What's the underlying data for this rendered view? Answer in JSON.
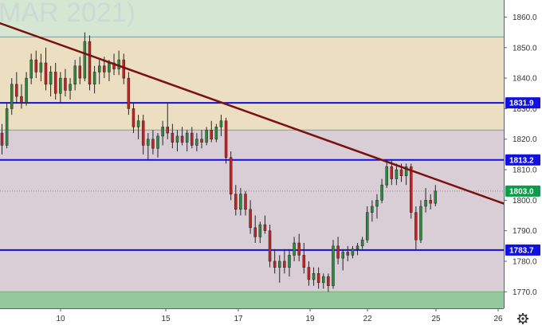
{
  "watermark": "MAR 2021)",
  "chart_data": {
    "type": "candlestick",
    "ylim": [
      1764.6,
      1865.6
    ],
    "y_ticks": [
      1770,
      1780,
      1790,
      1800,
      1810,
      1820,
      1830,
      1840,
      1850,
      1860
    ],
    "y_tick_labels": [
      "1770.0",
      "1780.0",
      "1790.0",
      "1800.0",
      "1810.0",
      "1820.0",
      "1830.0",
      "1840.0",
      "1850.0",
      "1860.0"
    ],
    "x_ticks": [
      {
        "index": 0,
        "label": "10"
      },
      {
        "index": 1,
        "label": "15"
      },
      {
        "index": 2,
        "label": "17"
      },
      {
        "index": 3,
        "label": "19"
      },
      {
        "index": 4,
        "label": "22"
      },
      {
        "index": 5,
        "label": "25"
      },
      {
        "index": 6,
        "label": "26"
      }
    ],
    "zones": [
      {
        "from": 1770.0,
        "to": 1764.6,
        "color": "#93c99d"
      },
      {
        "from": 1823.0,
        "to": 1770.0,
        "color": "#d9cdd6"
      },
      {
        "from": 1853.5,
        "to": 1823.0,
        "color": "#ecdec0"
      },
      {
        "from": 1865.6,
        "to": 1853.5,
        "color": "#d5e6d3"
      }
    ],
    "levels": [
      {
        "value": 1831.9,
        "label": "1831.9",
        "color": "#1010e0"
      },
      {
        "value": 1813.2,
        "label": "1813.2",
        "color": "#1010e0"
      },
      {
        "value": 1783.7,
        "label": "1783.7",
        "color": "#1010e0"
      }
    ],
    "current_price": {
      "value": 1803.0,
      "label": "1803.0",
      "color": "#0a9d4a"
    },
    "trendline": {
      "from": 1858.0,
      "to": 1798.9,
      "color": "#7a1212"
    },
    "candles": [
      [
        1822.0,
        1825.0,
        1815.0,
        1818.0
      ],
      [
        1818.0,
        1832.0,
        1817.0,
        1830.0
      ],
      [
        1830.0,
        1840.0,
        1828.0,
        1838.0
      ],
      [
        1838.0,
        1842.0,
        1832.0,
        1834.0
      ],
      [
        1834.0,
        1838.0,
        1830.0,
        1832.0
      ],
      [
        1832.0,
        1842.0,
        1831.0,
        1840.0
      ],
      [
        1840.0,
        1848.0,
        1838.0,
        1846.0
      ],
      [
        1846.0,
        1849.0,
        1840.0,
        1842.0
      ],
      [
        1842.0,
        1848.0,
        1839.0,
        1845.0
      ],
      [
        1845.0,
        1850.0,
        1836.0,
        1838.0
      ],
      [
        1838.0,
        1844.0,
        1834.0,
        1842.0
      ],
      [
        1842.0,
        1845.0,
        1833.0,
        1835.0
      ],
      [
        1835.0,
        1842.0,
        1832.0,
        1840.0
      ],
      [
        1840.0,
        1843.0,
        1834.0,
        1836.0
      ],
      [
        1836.0,
        1840.0,
        1833.0,
        1838.0
      ],
      [
        1838.0,
        1846.0,
        1836.0,
        1844.0
      ],
      [
        1844.0,
        1847.0,
        1838.0,
        1840.0
      ],
      [
        1840.0,
        1855.0,
        1839.0,
        1852.0
      ],
      [
        1852.0,
        1854.0,
        1836.0,
        1838.0
      ],
      [
        1838.0,
        1844.0,
        1835.0,
        1842.0
      ],
      [
        1842.0,
        1846.0,
        1838.0,
        1844.0
      ],
      [
        1844.0,
        1847.0,
        1840.0,
        1842.0
      ],
      [
        1842.0,
        1846.0,
        1839.0,
        1845.0
      ],
      [
        1845.0,
        1848.0,
        1841.0,
        1843.0
      ],
      [
        1843.0,
        1849.0,
        1841.0,
        1846.0
      ],
      [
        1846.0,
        1848.0,
        1838.0,
        1840.0
      ],
      [
        1840.0,
        1842.0,
        1828.0,
        1830.0
      ],
      [
        1830.0,
        1832.0,
        1822.0,
        1824.0
      ],
      [
        1824.0,
        1828.0,
        1820.0,
        1826.0
      ],
      [
        1826.0,
        1828.0,
        1815.0,
        1818.0
      ],
      [
        1818.0,
        1822.0,
        1813.0,
        1820.0
      ],
      [
        1820.0,
        1823.0,
        1815.0,
        1817.0
      ],
      [
        1817.0,
        1822.0,
        1814.0,
        1821.0
      ],
      [
        1821.0,
        1826.0,
        1818.0,
        1824.0
      ],
      [
        1824.0,
        1832.0,
        1820.0,
        1822.0
      ],
      [
        1822.0,
        1825.0,
        1817.0,
        1819.0
      ],
      [
        1819.0,
        1823.0,
        1816.0,
        1821.0
      ],
      [
        1821.0,
        1824.0,
        1818.0,
        1819.0
      ],
      [
        1819.0,
        1823.0,
        1816.0,
        1822.0
      ],
      [
        1822.0,
        1824.0,
        1817.0,
        1818.0
      ],
      [
        1818.0,
        1822.0,
        1816.0,
        1820.0
      ],
      [
        1820.0,
        1823.0,
        1817.0,
        1819.0
      ],
      [
        1819.0,
        1824.0,
        1818.0,
        1823.0
      ],
      [
        1823.0,
        1826.0,
        1819.0,
        1820.0
      ],
      [
        1820.0,
        1825.0,
        1819.0,
        1824.0
      ],
      [
        1824.0,
        1828.0,
        1821.0,
        1826.0
      ],
      [
        1826.0,
        1827.0,
        1812.0,
        1814.0
      ],
      [
        1814.0,
        1816.0,
        1800.0,
        1802.0
      ],
      [
        1802.0,
        1805.0,
        1795.0,
        1797.0
      ],
      [
        1797.0,
        1804.0,
        1795.0,
        1802.0
      ],
      [
        1802.0,
        1803.0,
        1795.0,
        1797.0
      ],
      [
        1797.0,
        1800.0,
        1789.0,
        1791.0
      ],
      [
        1791.0,
        1795.0,
        1786.0,
        1788.0
      ],
      [
        1788.0,
        1793.0,
        1786.0,
        1792.0
      ],
      [
        1792.0,
        1795.0,
        1789.0,
        1790.0
      ],
      [
        1790.0,
        1792.0,
        1778.0,
        1780.0
      ],
      [
        1780.0,
        1784.0,
        1776.0,
        1778.0
      ],
      [
        1778.0,
        1782.0,
        1773.0,
        1780.0
      ],
      [
        1780.0,
        1784.0,
        1776.0,
        1778.0
      ],
      [
        1778.0,
        1784.0,
        1775.0,
        1782.0
      ],
      [
        1782.0,
        1788.0,
        1780.0,
        1786.0
      ],
      [
        1786.0,
        1789.0,
        1780.0,
        1782.0
      ],
      [
        1782.0,
        1786.0,
        1776.0,
        1778.0
      ],
      [
        1778.0,
        1780.0,
        1772.0,
        1774.0
      ],
      [
        1774.0,
        1778.0,
        1772.0,
        1776.0
      ],
      [
        1776.0,
        1778.0,
        1771.0,
        1773.0
      ],
      [
        1773.0,
        1776.0,
        1771.0,
        1775.0
      ],
      [
        1775.0,
        1776.0,
        1770.0,
        1772.0
      ],
      [
        1772.0,
        1787.0,
        1771.0,
        1785.0
      ],
      [
        1785.0,
        1788.0,
        1779.0,
        1781.0
      ],
      [
        1781.0,
        1784.0,
        1777.0,
        1783.0
      ],
      [
        1783.0,
        1785.0,
        1780.0,
        1782.0
      ],
      [
        1782.0,
        1785.0,
        1781.0,
        1784.0
      ],
      [
        1784.0,
        1786.0,
        1782.0,
        1785.0
      ],
      [
        1785.0,
        1788.0,
        1784.0,
        1787.0
      ],
      [
        1787.0,
        1798.0,
        1786.0,
        1796.0
      ],
      [
        1796.0,
        1800.0,
        1793.0,
        1798.0
      ],
      [
        1798.0,
        1802.0,
        1794.0,
        1800.0
      ],
      [
        1800.0,
        1807.0,
        1799.0,
        1805.0
      ],
      [
        1805.0,
        1813.0,
        1804.0,
        1811.0
      ],
      [
        1811.0,
        1813.0,
        1805.0,
        1807.0
      ],
      [
        1807.0,
        1812.0,
        1805.0,
        1810.0
      ],
      [
        1810.0,
        1812.0,
        1806.0,
        1808.0
      ],
      [
        1808.0,
        1812.0,
        1805.0,
        1811.0
      ],
      [
        1811.0,
        1812.0,
        1794.0,
        1796.0
      ],
      [
        1796.0,
        1798.0,
        1784.0,
        1787.0
      ],
      [
        1787.0,
        1800.0,
        1786.0,
        1798.0
      ],
      [
        1798.0,
        1804.0,
        1796.0,
        1800.0
      ],
      [
        1800.0,
        1802.0,
        1797.0,
        1799.0
      ],
      [
        1799.0,
        1805.0,
        1798.0,
        1803.0
      ]
    ]
  }
}
